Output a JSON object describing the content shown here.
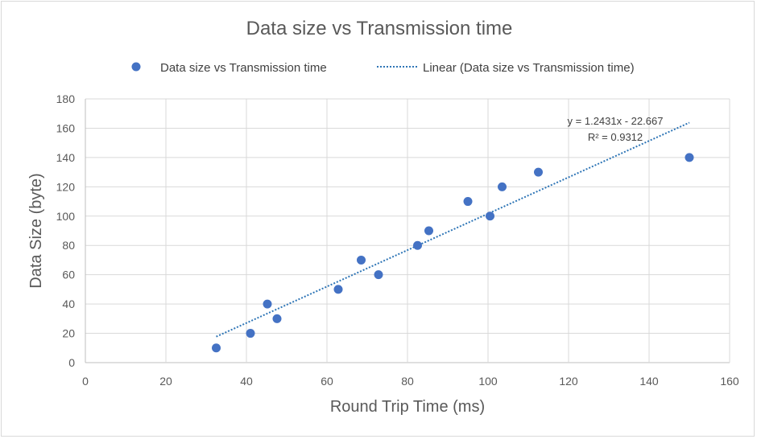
{
  "chart_data": {
    "type": "scatter",
    "title": "Data size vs Transmission time",
    "xlabel": "Round Trip Time (ms)",
    "ylabel": "Data Size (byte)",
    "xlim": [
      0,
      160
    ],
    "ylim": [
      0,
      180
    ],
    "xticks": [
      "0",
      "20",
      "40",
      "60",
      "80",
      "100",
      "120",
      "140",
      "160"
    ],
    "yticks": [
      "0",
      "20",
      "40",
      "60",
      "80",
      "100",
      "120",
      "140",
      "160",
      "180"
    ],
    "grid": true,
    "legend_position": "top",
    "series": [
      {
        "name": "Data size vs Transmission time",
        "color": "#4472c4",
        "x": [
          32.5,
          41.0,
          45.2,
          47.6,
          62.8,
          68.5,
          72.8,
          82.5,
          85.3,
          95.0,
          100.5,
          103.5,
          112.5,
          150.0
        ],
        "y": [
          10,
          20,
          40,
          30,
          50,
          70,
          60,
          80,
          90,
          110,
          100,
          120,
          130,
          140
        ]
      }
    ],
    "trendline": {
      "name": "Linear (Data size vs Transmission time)",
      "type": "linear",
      "slope": 1.2431,
      "intercept": -22.667,
      "x_range": [
        32.5,
        150.0
      ],
      "equation": "y = 1.2431x - 22.667",
      "r_squared": "R² = 0.9312",
      "color": "#2e75b6"
    }
  }
}
